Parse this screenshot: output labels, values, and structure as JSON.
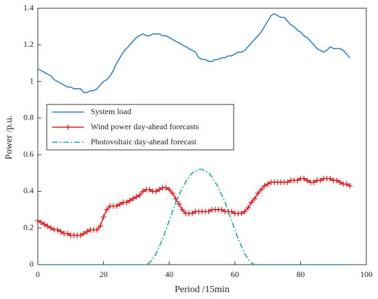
{
  "chart_data": {
    "type": "line",
    "xlabel": "Period /15min",
    "ylabel": "Power /p.u.",
    "xlim": [
      0,
      100
    ],
    "xticks": [
      0,
      20,
      40,
      60,
      80,
      100
    ],
    "ylim": [
      0,
      1.4
    ],
    "yticks": [
      0,
      0.2,
      0.4,
      0.6,
      0.8,
      1,
      1.2,
      1.4
    ],
    "legend_position": "center left",
    "grid": false,
    "x": [
      0,
      1,
      2,
      3,
      4,
      5,
      6,
      7,
      8,
      9,
      10,
      11,
      12,
      13,
      14,
      15,
      16,
      17,
      18,
      19,
      20,
      21,
      22,
      23,
      24,
      25,
      26,
      27,
      28,
      29,
      30,
      31,
      32,
      33,
      34,
      35,
      36,
      37,
      38,
      39,
      40,
      41,
      42,
      43,
      44,
      45,
      46,
      47,
      48,
      49,
      50,
      51,
      52,
      53,
      54,
      55,
      56,
      57,
      58,
      59,
      60,
      61,
      62,
      63,
      64,
      65,
      66,
      67,
      68,
      69,
      70,
      71,
      72,
      73,
      74,
      75,
      76,
      77,
      78,
      79,
      80,
      81,
      82,
      83,
      84,
      85,
      86,
      87,
      88,
      89,
      90,
      91,
      92,
      93,
      94,
      95
    ],
    "series": [
      {
        "name": "System load",
        "color": "#2f7fc1",
        "linestyle": "solid",
        "marker": "none",
        "values": [
          1.07,
          1.06,
          1.05,
          1.04,
          1.03,
          1.01,
          1.0,
          0.99,
          0.98,
          0.97,
          0.97,
          0.96,
          0.96,
          0.96,
          0.94,
          0.94,
          0.95,
          0.95,
          0.96,
          0.98,
          1.0,
          1.01,
          1.03,
          1.06,
          1.1,
          1.13,
          1.16,
          1.18,
          1.2,
          1.22,
          1.24,
          1.25,
          1.26,
          1.25,
          1.25,
          1.26,
          1.26,
          1.26,
          1.25,
          1.25,
          1.24,
          1.23,
          1.22,
          1.21,
          1.2,
          1.19,
          1.18,
          1.17,
          1.16,
          1.13,
          1.12,
          1.12,
          1.11,
          1.11,
          1.12,
          1.12,
          1.13,
          1.13,
          1.14,
          1.14,
          1.15,
          1.16,
          1.16,
          1.17,
          1.19,
          1.21,
          1.23,
          1.25,
          1.27,
          1.3,
          1.33,
          1.36,
          1.37,
          1.36,
          1.35,
          1.35,
          1.33,
          1.31,
          1.3,
          1.28,
          1.27,
          1.25,
          1.24,
          1.22,
          1.2,
          1.18,
          1.17,
          1.16,
          1.17,
          1.19,
          1.18,
          1.18,
          1.18,
          1.17,
          1.15,
          1.13
        ]
      },
      {
        "name": "Wind power day-ahead forecasts",
        "color": "#d42020",
        "linestyle": "solid",
        "marker": "+",
        "values": [
          0.24,
          0.23,
          0.22,
          0.21,
          0.2,
          0.19,
          0.19,
          0.18,
          0.17,
          0.17,
          0.16,
          0.16,
          0.16,
          0.16,
          0.17,
          0.18,
          0.19,
          0.19,
          0.19,
          0.21,
          0.26,
          0.3,
          0.32,
          0.32,
          0.32,
          0.33,
          0.34,
          0.34,
          0.35,
          0.36,
          0.37,
          0.38,
          0.4,
          0.41,
          0.41,
          0.4,
          0.4,
          0.41,
          0.42,
          0.42,
          0.41,
          0.39,
          0.36,
          0.33,
          0.3,
          0.28,
          0.28,
          0.28,
          0.29,
          0.29,
          0.29,
          0.29,
          0.29,
          0.3,
          0.3,
          0.3,
          0.3,
          0.29,
          0.29,
          0.29,
          0.28,
          0.28,
          0.28,
          0.29,
          0.31,
          0.34,
          0.36,
          0.39,
          0.41,
          0.43,
          0.44,
          0.45,
          0.45,
          0.45,
          0.45,
          0.45,
          0.45,
          0.46,
          0.46,
          0.46,
          0.47,
          0.47,
          0.46,
          0.45,
          0.45,
          0.46,
          0.46,
          0.47,
          0.47,
          0.47,
          0.46,
          0.46,
          0.45,
          0.44,
          0.44,
          0.43
        ]
      },
      {
        "name": "Photovoltaic day-ahead forecast",
        "color": "#1aa0a0",
        "linestyle": "dashdot",
        "marker": "none",
        "values": [
          0,
          0,
          0,
          0,
          0,
          0,
          0,
          0,
          0,
          0,
          0,
          0,
          0,
          0,
          0,
          0,
          0,
          0,
          0,
          0,
          0,
          0,
          0,
          0,
          0,
          0,
          0,
          0,
          0,
          0,
          0,
          0,
          0,
          0,
          0.01,
          0.03,
          0.06,
          0.1,
          0.14,
          0.19,
          0.24,
          0.29,
          0.34,
          0.38,
          0.42,
          0.45,
          0.48,
          0.5,
          0.51,
          0.52,
          0.52,
          0.51,
          0.5,
          0.48,
          0.45,
          0.42,
          0.38,
          0.34,
          0.29,
          0.24,
          0.19,
          0.14,
          0.1,
          0.06,
          0.03,
          0.01,
          0,
          0,
          0,
          0,
          0,
          0,
          0,
          0,
          0,
          0,
          0,
          0,
          0,
          0,
          0,
          0,
          0,
          0,
          0,
          0,
          0,
          0,
          0,
          0,
          0,
          0,
          0,
          0,
          0,
          0
        ]
      }
    ]
  }
}
